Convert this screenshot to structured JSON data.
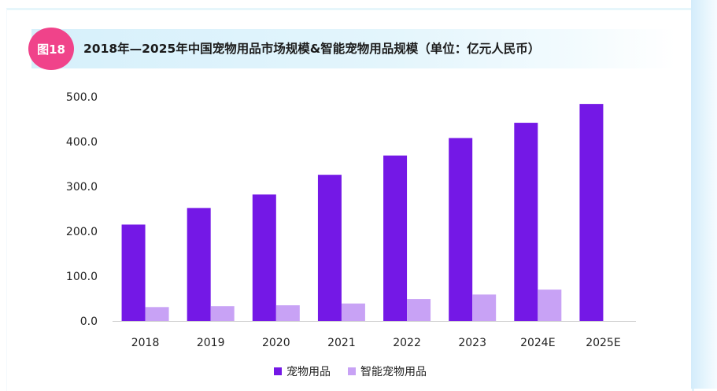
{
  "badge": "图18",
  "title": "2018年—2025年中国宠物用品市场规模&智能宠物用品规模（单位：亿元人民币）",
  "colors": {
    "primary_series": "#7418e6",
    "secondary_series": "#c8a2f5",
    "badge": "#f0438a"
  },
  "chart_data": {
    "type": "bar",
    "title": "2018年—2025年中国宠物用品市场规模&智能宠物用品规模（单位：亿元人民币）",
    "categories": [
      "2018",
      "2019",
      "2020",
      "2021",
      "2022",
      "2023",
      "2024E",
      "2025E"
    ],
    "series": [
      {
        "name": "宠物用品",
        "values": [
          215,
          252,
          282,
          326,
          369,
          408,
          442,
          484
        ]
      },
      {
        "name": "智能宠物用品",
        "values": [
          31,
          33,
          35,
          39,
          49,
          59,
          70,
          0
        ]
      }
    ],
    "yticks": [
      "0.0",
      "100.0",
      "200.0",
      "300.0",
      "400.0",
      "500.0"
    ],
    "ylim": [
      0,
      500
    ],
    "xlabel": "",
    "ylabel": "",
    "grid": false,
    "legend_position": "bottom-center"
  }
}
